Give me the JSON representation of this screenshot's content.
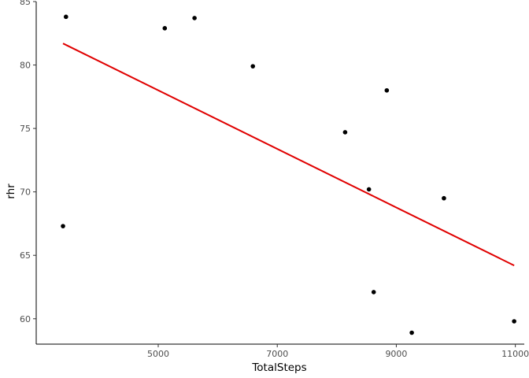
{
  "chart_data": {
    "type": "scatter",
    "title": "",
    "xlabel": "TotalSteps",
    "ylabel": "rhr",
    "xlim": [
      2950,
      11150
    ],
    "ylim": [
      58,
      85
    ],
    "xticks": [
      5000,
      7000,
      9000,
      11000
    ],
    "yticks": [
      60,
      65,
      70,
      75,
      80,
      85
    ],
    "grid": false,
    "points": [
      {
        "x": 3400,
        "y": 67.3
      },
      {
        "x": 3450,
        "y": 83.8
      },
      {
        "x": 5110,
        "y": 82.9
      },
      {
        "x": 5610,
        "y": 83.7
      },
      {
        "x": 6590,
        "y": 79.9
      },
      {
        "x": 8140,
        "y": 74.7
      },
      {
        "x": 8540,
        "y": 70.2
      },
      {
        "x": 8620,
        "y": 62.1
      },
      {
        "x": 8840,
        "y": 78.0
      },
      {
        "x": 9260,
        "y": 58.9
      },
      {
        "x": 9800,
        "y": 69.5
      },
      {
        "x": 10980,
        "y": 59.8
      }
    ],
    "fit_line": {
      "x": [
        3400,
        10980
      ],
      "y": [
        81.7,
        64.2
      ]
    },
    "colors": {
      "points": "#000000",
      "fit_line": "#e00000"
    }
  }
}
